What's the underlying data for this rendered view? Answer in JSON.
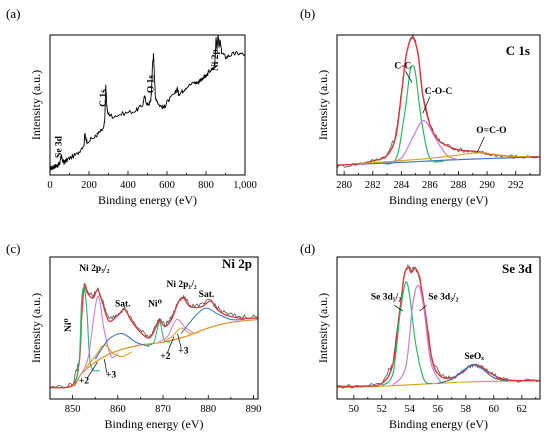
{
  "chart_data": [
    {
      "id": "a",
      "type": "line",
      "panel_label": "(a)",
      "header": "",
      "xlabel": "Binding energy (eV)",
      "ylabel": "Intensity (a.u.)",
      "xlim": [
        0,
        1000
      ],
      "ylim": [
        0,
        100
      ],
      "x_reversed": false,
      "xticks": [
        0,
        200,
        400,
        600,
        800,
        1000
      ],
      "xtick_labels": [
        "0",
        "200",
        "400",
        "600",
        "800",
        "1,000"
      ],
      "annotations": [
        {
          "text": "Se 3d",
          "x": 58,
          "y": 20,
          "rotate": -90
        },
        {
          "text": "C 1s",
          "x": 286,
          "y": 55,
          "rotate": -90
        },
        {
          "text": "O 1s",
          "x": 531,
          "y": 65,
          "rotate": -90
        },
        {
          "text": "Ni 2p",
          "x": 862,
          "y": 82,
          "rotate": -90
        }
      ],
      "series": [
        {
          "color": "#000000",
          "width": 0.9,
          "sampled": true,
          "x": [
            0,
            12,
            20,
            30,
            40,
            50,
            57,
            60,
            66,
            72,
            80,
            100,
            140,
            175,
            178,
            183,
            190,
            230,
            250,
            275,
            281,
            284,
            286,
            290,
            296,
            320,
            380,
            440,
            475,
            485,
            500,
            515,
            520,
            526,
            531,
            535,
            540,
            560,
            585,
            600,
            640,
            652,
            660,
            680,
            700,
            740,
            760,
            770,
            790,
            800,
            815,
            840,
            845,
            852,
            856,
            862,
            866,
            872,
            880,
            900,
            930,
            960,
            1000
          ],
          "y": [
            5,
            5,
            6,
            6.5,
            7,
            8,
            14,
            12,
            10,
            9,
            10,
            12,
            15,
            22,
            30,
            26,
            24,
            27,
            30,
            33,
            40,
            55,
            64,
            52,
            44,
            42,
            44,
            46,
            50,
            56,
            50,
            52,
            58,
            80,
            86,
            74,
            56,
            50,
            48,
            52,
            58,
            62,
            58,
            60,
            63,
            66,
            66,
            68,
            70,
            70,
            74,
            76,
            80,
            98,
            90,
            100,
            92,
            96,
            88,
            84,
            86,
            87,
            86
          ]
        }
      ]
    },
    {
      "id": "b",
      "type": "line",
      "panel_label": "(b)",
      "header": "C 1s",
      "xlabel": "Binding energy (eV)",
      "ylabel": "Intensity (a.u.)",
      "xlim": [
        279.5,
        293.7
      ],
      "ylim": [
        0,
        100
      ],
      "x_reversed": false,
      "xticks": [
        280,
        282,
        284,
        286,
        288,
        290,
        292
      ],
      "xtick_labels": [
        "280",
        "282",
        "284",
        "286",
        "288",
        "290",
        "292"
      ],
      "annotations": [
        {
          "text": "C-C",
          "x": 284.1,
          "y": 76
        },
        {
          "text": "C-O-C",
          "x": 286.6,
          "y": 58
        },
        {
          "text": "O=C-O",
          "x": 290.3,
          "y": 30
        }
      ],
      "annotation_lines": [
        {
          "x1": 284.3,
          "y1": 74,
          "x2": 284.75,
          "y2": 66
        },
        {
          "x1": 286.0,
          "y1": 56,
          "x2": 285.5,
          "y2": 44
        },
        {
          "x1": 289.8,
          "y1": 27,
          "x2": 289.3,
          "y2": 16
        }
      ],
      "series": [
        {
          "color": "#3b73c4",
          "width": 1.2,
          "x": [
            279.5,
            284,
            288,
            293.7
          ],
          "y": [
            7,
            9,
            11,
            13
          ]
        },
        {
          "color": "#555555",
          "width": 0.8,
          "sampled": true,
          "x": [
            279.5,
            281,
            282,
            283,
            283.6,
            284,
            284.3,
            284.6,
            284.8,
            285,
            285.2,
            285.5,
            286,
            286.5,
            287,
            288,
            289,
            289.5,
            290,
            291,
            292,
            293.7
          ],
          "y": [
            6,
            8,
            10,
            14,
            28,
            58,
            84,
            97,
            99,
            95,
            85,
            58,
            36,
            26,
            22,
            18,
            17,
            16,
            15,
            14,
            13,
            13
          ]
        },
        {
          "color": "#d63b3b",
          "width": 1.4,
          "x": [
            279.5,
            281,
            282,
            283,
            283.6,
            284,
            284.3,
            284.6,
            284.8,
            285,
            285.2,
            285.5,
            286,
            286.5,
            287,
            288,
            289,
            289.5,
            290,
            291,
            292,
            293.7
          ],
          "y": [
            7,
            8,
            10,
            14,
            27,
            57,
            83,
            96,
            98,
            94,
            84,
            57,
            36,
            26,
            22,
            18,
            17,
            16,
            15,
            14,
            13,
            13
          ]
        },
        {
          "color": "#2fb36b",
          "width": 1.2,
          "x": [
            282.5,
            283.6,
            284.2,
            284.6,
            284.8,
            285.0,
            285.4,
            286.0,
            287.0
          ],
          "y": [
            8.5,
            11,
            42,
            73,
            78,
            72,
            40,
            12,
            10
          ]
        },
        {
          "color": "#c77dd8",
          "width": 1.2,
          "x": [
            283.0,
            284.0,
            284.8,
            285.4,
            285.8,
            286.4,
            287.2,
            288.0
          ],
          "y": [
            9,
            12,
            27,
            38,
            37,
            26,
            14,
            11
          ]
        },
        {
          "color": "#d9a21a",
          "width": 1.1,
          "x": [
            281,
            283,
            285,
            287,
            288.5,
            289.3,
            290.3,
            291.5,
            293
          ],
          "y": [
            8,
            9.5,
            11,
            13,
            15,
            16,
            15,
            13.5,
            13
          ]
        }
      ]
    },
    {
      "id": "c",
      "type": "line",
      "panel_label": "(c)",
      "header": "Ni 2p",
      "xlabel": "Binding energy (eV)",
      "ylabel": "Intensity (a.u.)",
      "xlim": [
        845,
        891
      ],
      "ylim": [
        0,
        100
      ],
      "x_reversed": false,
      "xticks": [
        850,
        860,
        870,
        880,
        890
      ],
      "xtick_labels": [
        "850",
        "860",
        "870",
        "880",
        "890"
      ],
      "annotations": [
        {
          "text": "Ni⁰",
          "x": 849.6,
          "y": 52,
          "rotate": -90
        },
        {
          "text": "Ni 2p₃/₂",
          "x": 854.8,
          "y": 90
        },
        {
          "text": "Sat.",
          "x": 861.1,
          "y": 65
        },
        {
          "text": "Ni⁰",
          "x": 868.2,
          "y": 65
        },
        {
          "text": "Ni 2p₁/₂",
          "x": 874.1,
          "y": 79
        },
        {
          "text": "Sat.",
          "x": 879.6,
          "y": 72
        },
        {
          "text": "+2",
          "x": 852.5,
          "y": 11
        },
        {
          "text": "+3",
          "x": 858.5,
          "y": 15
        },
        {
          "text": "+2",
          "x": 870.5,
          "y": 28
        },
        {
          "text": "+3",
          "x": 874.5,
          "y": 32
        }
      ],
      "annotation_lines": [
        {
          "x1": 853.3,
          "y1": 15,
          "x2": 855.5,
          "y2": 26
        },
        {
          "x1": 857.6,
          "y1": 18,
          "x2": 857.0,
          "y2": 28
        },
        {
          "x1": 870.9,
          "y1": 32,
          "x2": 872.4,
          "y2": 44
        },
        {
          "x1": 874.0,
          "y1": 36,
          "x2": 873.2,
          "y2": 46
        }
      ],
      "series": [
        {
          "color": "#e58e2b",
          "width": 1.2,
          "x": [
            845,
            850,
            852,
            856,
            860,
            865,
            870,
            875,
            880,
            885,
            891
          ],
          "y": [
            8,
            9,
            18,
            28,
            34,
            38,
            40,
            44,
            50,
            54,
            56
          ]
        },
        {
          "color": "#555555",
          "width": 0.8,
          "sampled": true,
          "x": [
            845,
            850,
            851.5,
            852.0,
            852.6,
            853.2,
            854.5,
            855.5,
            856.5,
            858.0,
            860.0,
            861.5,
            863.0,
            865.0,
            867.0,
            868.5,
            869.2,
            870.5,
            872.0,
            873.5,
            874.5,
            876.0,
            878.5,
            880.5,
            882.0,
            884.0,
            887.0,
            891
          ],
          "y": [
            8,
            10,
            28,
            60,
            82,
            76,
            72,
            78,
            70,
            56,
            60,
            64,
            56,
            48,
            44,
            52,
            56,
            52,
            58,
            70,
            72,
            66,
            66,
            70,
            64,
            60,
            58,
            58
          ]
        },
        {
          "color": "#d63b3b",
          "width": 1.3,
          "x": [
            845,
            850,
            851.5,
            852.0,
            852.6,
            853.2,
            854.5,
            855.5,
            856.5,
            858.0,
            860.0,
            861.5,
            863.0,
            865.0,
            867.0,
            868.5,
            869.2,
            870.5,
            872.0,
            873.5,
            874.5,
            876.0,
            878.5,
            880.5,
            882.0,
            884.0,
            887.0,
            891
          ],
          "y": [
            8,
            10,
            27,
            58,
            80,
            75,
            71,
            77,
            69,
            55,
            59,
            63,
            55,
            47,
            43,
            51,
            55,
            51,
            57,
            69,
            71,
            65,
            65,
            69,
            63,
            59,
            57,
            57
          ]
        },
        {
          "color": "#2fb36b",
          "width": 1.1,
          "x": [
            850.5,
            851.5,
            852.0,
            852.6,
            853.2,
            854,
            856
          ],
          "y": [
            9,
            28,
            70,
            78,
            60,
            24,
            20
          ]
        },
        {
          "color": "#2fb36b",
          "width": 1.0,
          "x": [
            866.5,
            868,
            869.2,
            870.2,
            871.5
          ],
          "y": [
            38,
            40,
            54,
            42,
            40
          ]
        },
        {
          "color": "#c77dd8",
          "width": 1.1,
          "x": [
            852,
            853.5,
            855.5,
            857,
            858.5,
            860
          ],
          "y": [
            18,
            30,
            72,
            48,
            30,
            32
          ]
        },
        {
          "color": "#c77dd8",
          "width": 1.0,
          "x": [
            869,
            871,
            873,
            875,
            877
          ],
          "y": [
            40,
            44,
            56,
            50,
            46
          ]
        },
        {
          "color": "#d9a21a",
          "width": 1.1,
          "x": [
            853,
            855,
            857,
            859,
            861,
            863
          ],
          "y": [
            22,
            30,
            38,
            32,
            30,
            33
          ]
        },
        {
          "color": "#d9a21a",
          "width": 1.0,
          "x": [
            870,
            872,
            874,
            876,
            878
          ],
          "y": [
            40,
            44,
            50,
            46,
            47
          ]
        },
        {
          "color": "#3b73c4",
          "width": 1.1,
          "x": [
            855,
            858,
            861,
            864,
            867
          ],
          "y": [
            28,
            42,
            46,
            40,
            37
          ]
        },
        {
          "color": "#3b73c4",
          "width": 1.0,
          "x": [
            874,
            877,
            879.5,
            882,
            885,
            888
          ],
          "y": [
            46,
            58,
            64,
            60,
            56,
            56
          ]
        }
      ]
    },
    {
      "id": "d",
      "type": "line",
      "panel_label": "(d)",
      "header": "Se 3d",
      "xlabel": "Binding energy (eV)",
      "ylabel": "Intensity (a.u.)",
      "xlim": [
        48.8,
        63.3
      ],
      "ylim": [
        0,
        100
      ],
      "x_reversed": false,
      "xticks": [
        50,
        52,
        54,
        56,
        58,
        60,
        62
      ],
      "xtick_labels": [
        "50",
        "52",
        "54",
        "56",
        "58",
        "60",
        "62"
      ],
      "annotations": [
        {
          "text": "Se 3d₅/₂",
          "x": 52.3,
          "y": 70
        },
        {
          "text": "Se 3d₃/₂",
          "x": 56.4,
          "y": 70
        },
        {
          "text": "SeOₓ",
          "x": 58.6,
          "y": 28
        }
      ],
      "annotation_lines": [
        {
          "x1": 52.9,
          "y1": 66,
          "x2": 53.5,
          "y2": 62
        },
        {
          "x1": 55.2,
          "y1": 66,
          "x2": 54.7,
          "y2": 62
        }
      ],
      "series": [
        {
          "color": "#d9a21a",
          "width": 1.1,
          "x": [
            48.8,
            52,
            54,
            56,
            58,
            60,
            63.3
          ],
          "y": [
            8,
            9,
            10,
            11,
            12,
            12.5,
            13
          ]
        },
        {
          "color": "#555555",
          "width": 0.8,
          "sampled": true,
          "x": [
            48.8,
            50.5,
            52.0,
            52.8,
            53.3,
            53.6,
            53.9,
            54.1,
            54.4,
            54.7,
            55.1,
            55.6,
            56.2,
            57.0,
            57.8,
            58.4,
            59.0,
            59.8,
            60.6,
            61.5,
            63.3
          ],
          "y": [
            9,
            9,
            11,
            26,
            64,
            88,
            94,
            90,
            93,
            86,
            62,
            28,
            16,
            15,
            19,
            24,
            23,
            18,
            14,
            13,
            13
          ]
        },
        {
          "color": "#d63b3b",
          "width": 1.4,
          "x": [
            48.8,
            50.5,
            52.0,
            52.8,
            53.3,
            53.6,
            53.9,
            54.1,
            54.4,
            54.7,
            55.1,
            55.6,
            56.2,
            57.0,
            57.8,
            58.4,
            59.0,
            59.8,
            60.6,
            61.5,
            63.3
          ],
          "y": [
            9,
            9,
            11,
            25,
            63,
            87,
            93,
            89,
            92,
            85,
            61,
            27,
            16,
            15,
            19,
            24,
            23,
            18,
            14,
            13,
            13
          ]
        },
        {
          "color": "#2fb36b",
          "width": 1.2,
          "x": [
            52.0,
            52.8,
            53.3,
            53.7,
            54.0,
            54.4,
            55.0,
            55.6
          ],
          "y": [
            9.5,
            18,
            60,
            82,
            72,
            40,
            14,
            11
          ]
        },
        {
          "color": "#c77dd8",
          "width": 1.2,
          "x": [
            52.8,
            53.7,
            54.2,
            54.6,
            55.0,
            55.5,
            56.2
          ],
          "y": [
            10,
            22,
            66,
            80,
            64,
            26,
            12
          ]
        },
        {
          "color": "#3b73c4",
          "width": 1.2,
          "x": [
            56.0,
            57.0,
            57.8,
            58.5,
            59.2,
            60.0,
            61.0
          ],
          "y": [
            11,
            14,
            20,
            24,
            21,
            15,
            12.5
          ]
        }
      ]
    }
  ]
}
